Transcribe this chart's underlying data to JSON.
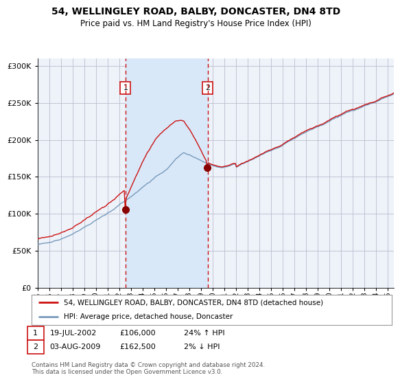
{
  "title": "54, WELLINGLEY ROAD, BALBY, DONCASTER, DN4 8TD",
  "subtitle": "Price paid vs. HM Land Registry's House Price Index (HPI)",
  "legend_line1": "54, WELLINGLEY ROAD, BALBY, DONCASTER, DN4 8TD (detached house)",
  "legend_line2": "HPI: Average price, detached house, Doncaster",
  "annotation1_label": "1",
  "annotation1_date": "19-JUL-2002",
  "annotation1_price": "£106,000",
  "annotation1_hpi": "24% ↑ HPI",
  "annotation2_label": "2",
  "annotation2_date": "03-AUG-2009",
  "annotation2_price": "£162,500",
  "annotation2_hpi": "2% ↓ HPI",
  "copyright": "Contains HM Land Registry data © Crown copyright and database right 2024.\nThis data is licensed under the Open Government Licence v3.0.",
  "sale1_year": 2002.54,
  "sale1_value": 106000,
  "sale2_year": 2009.58,
  "sale2_value": 162500,
  "hpi_color": "#7799bb",
  "price_color": "#cc1111",
  "shade_color": "#d8e8f8",
  "point_color": "#880000",
  "vline_color": "#cc1111",
  "plot_bg_color": "#eef3fa",
  "grid_color": "#bbbbcc",
  "ylim": [
    0,
    310000
  ],
  "xlim_start": 1995,
  "xlim_end": 2025.5,
  "xtick_years": [
    1995,
    1996,
    1997,
    1998,
    1999,
    2000,
    2001,
    2002,
    2003,
    2004,
    2005,
    2006,
    2007,
    2008,
    2009,
    2010,
    2011,
    2012,
    2013,
    2014,
    2015,
    2016,
    2017,
    2018,
    2019,
    2020,
    2021,
    2022,
    2023,
    2024,
    2025
  ]
}
